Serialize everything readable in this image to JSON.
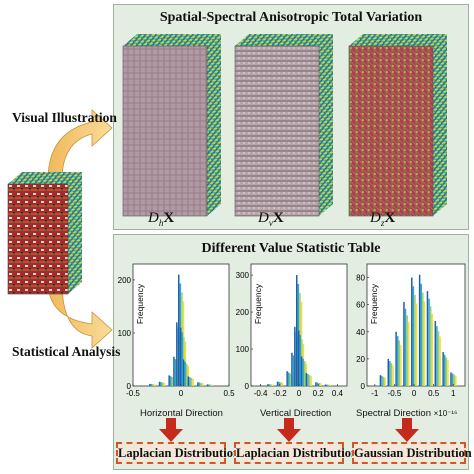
{
  "top_panel": {
    "title": "Spatial-Spectral Anisotropic Total Variation",
    "cubes": [
      {
        "op": "D",
        "sub": "h",
        "var": "X"
      },
      {
        "op": "D",
        "sub": "v",
        "var": "X"
      },
      {
        "op": "D",
        "sub": "z",
        "var": "X"
      }
    ]
  },
  "bottom_panel": {
    "title": "Different Value Statistic Table"
  },
  "left": {
    "visual_label": "Visual Illustration",
    "statistical_label": "Statistical Analysis"
  },
  "chart_data": [
    {
      "type": "bar",
      "ylabel": "Frequency",
      "xlabel": "Horizontal Direction",
      "xlim": [
        -0.5,
        0.5
      ],
      "ylim": [
        0,
        230
      ],
      "xticks": [
        "-0.5",
        "0",
        "0.5"
      ],
      "yticks": [
        "0",
        "100",
        "200"
      ],
      "x": [
        -0.3,
        -0.2,
        -0.1,
        -0.05,
        -0.02,
        0,
        0.02,
        0.05,
        0.1,
        0.2,
        0.3
      ],
      "values": [
        4,
        8,
        20,
        55,
        120,
        210,
        110,
        50,
        18,
        7,
        3
      ]
    },
    {
      "type": "bar",
      "ylabel": "Frequency",
      "xlabel": "Vertical Direction",
      "xlim": [
        -0.5,
        0.5
      ],
      "ylim": [
        0,
        330
      ],
      "xticks": [
        "-0.4",
        "-0.2",
        "0",
        "0.2",
        "0.4"
      ],
      "yticks": [
        "0",
        "100",
        "200",
        "300"
      ],
      "x": [
        -0.3,
        -0.2,
        -0.1,
        -0.05,
        -0.02,
        0,
        0.02,
        0.05,
        0.1,
        0.2,
        0.3
      ],
      "values": [
        5,
        12,
        40,
        90,
        160,
        300,
        150,
        80,
        35,
        10,
        4
      ]
    },
    {
      "type": "bar",
      "ylabel": "Frequency",
      "xlabel": "Spectral Direction",
      "xlabel_exponent": "×10⁻¹⁶",
      "xlim": [
        -1.2,
        1.3
      ],
      "ylim": [
        0,
        90
      ],
      "xticks": [
        "-1",
        "-0.5",
        "0",
        "0.5",
        "1"
      ],
      "yticks": [
        "0",
        "20",
        "40",
        "60",
        "80"
      ],
      "x": [
        -0.8,
        -0.6,
        -0.4,
        -0.2,
        0,
        0.2,
        0.4,
        0.6,
        0.8,
        1.0
      ],
      "values": [
        8,
        20,
        40,
        62,
        80,
        82,
        70,
        48,
        25,
        10
      ]
    }
  ],
  "distributions": [
    {
      "label": "Laplacian Distribution"
    },
    {
      "label": "Laplacian Distribution"
    },
    {
      "label": "Gaussian Distribution"
    }
  ],
  "colors": {
    "panel_bg": "#e3ede2",
    "arrow_fill": "#f5c77a",
    "down_arrow": "#c62a1d",
    "dist_border": "#d0572a",
    "bar_colors": [
      "#1f5fae",
      "#2fa7c9",
      "#9bcf6a",
      "#f3de3a"
    ]
  }
}
